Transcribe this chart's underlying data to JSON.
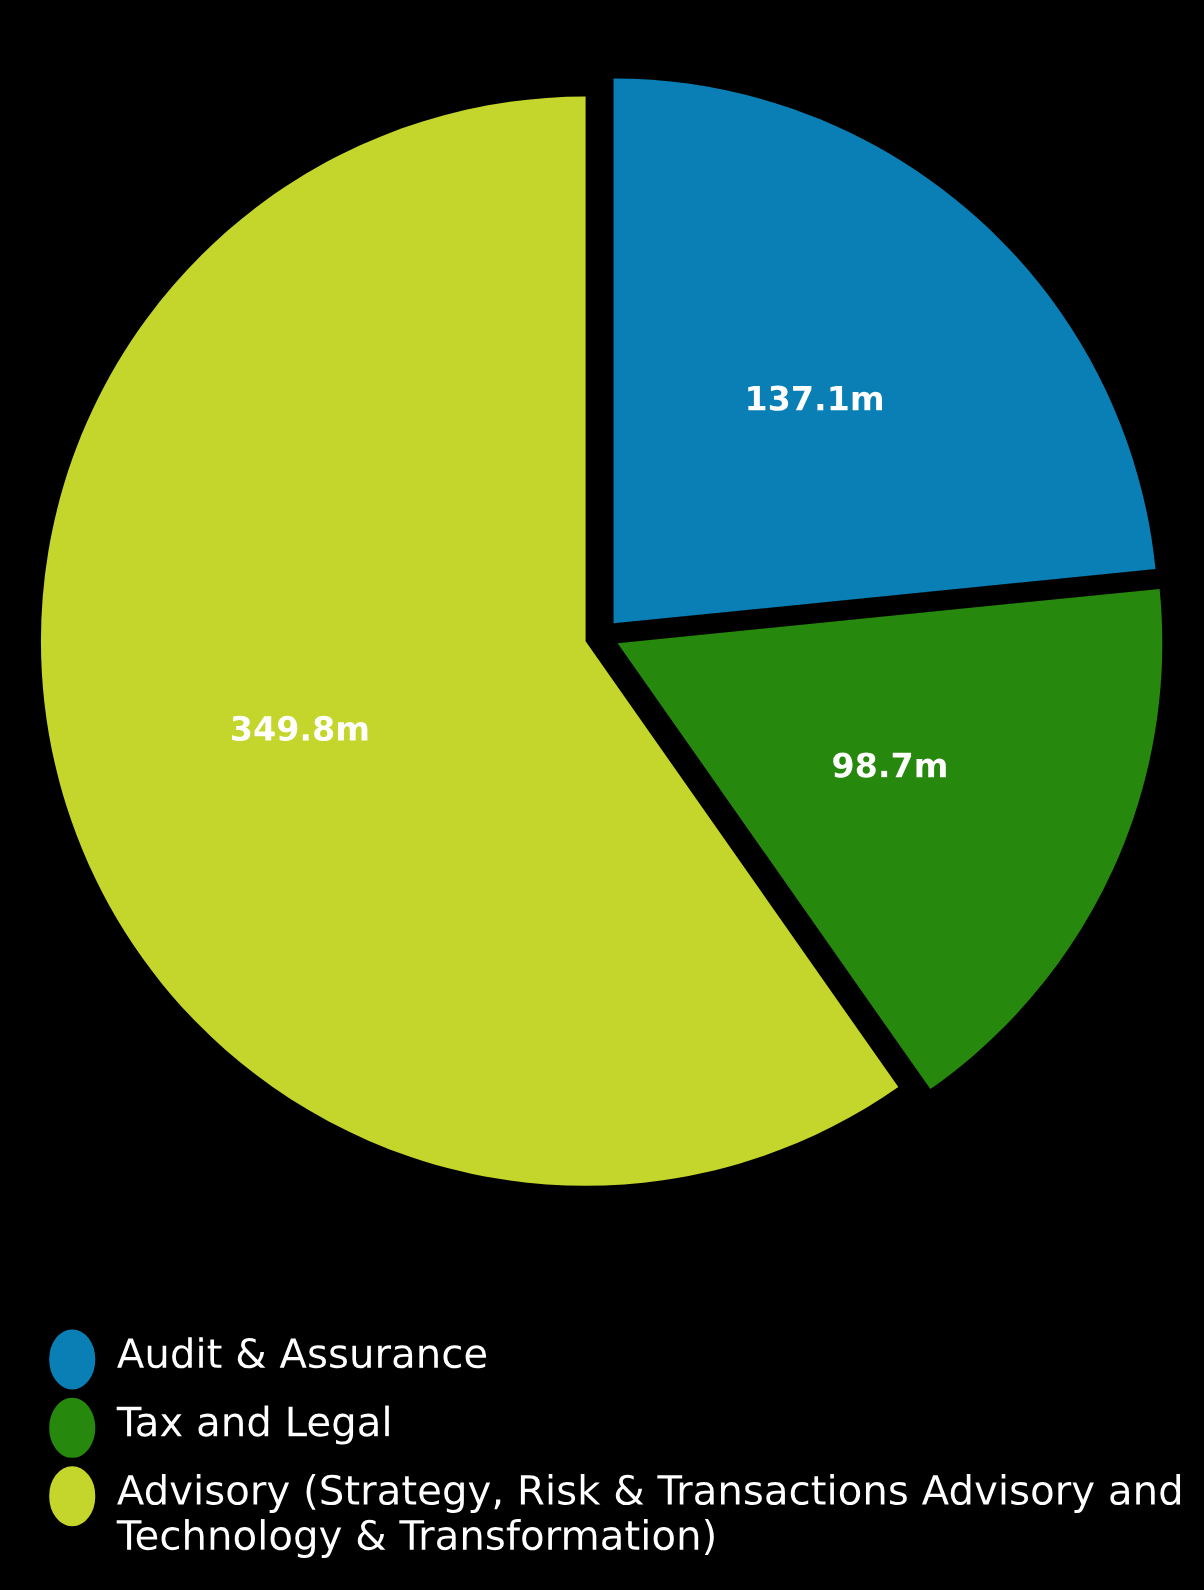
{
  "chart_data": {
    "type": "pie",
    "categories": [
      "Audit & Assurance",
      "Tax and Legal",
      "Advisory (Strategy, Risk & Transactions Advisory and Technology & Transformation)"
    ],
    "values": [
      137.1,
      98.7,
      349.8
    ],
    "value_labels": [
      "137.1m",
      "98.7m",
      "349.8m"
    ],
    "colors": [
      "#0a7fb5",
      "#26890d",
      "#c4d52b"
    ],
    "legend": "bottom"
  }
}
